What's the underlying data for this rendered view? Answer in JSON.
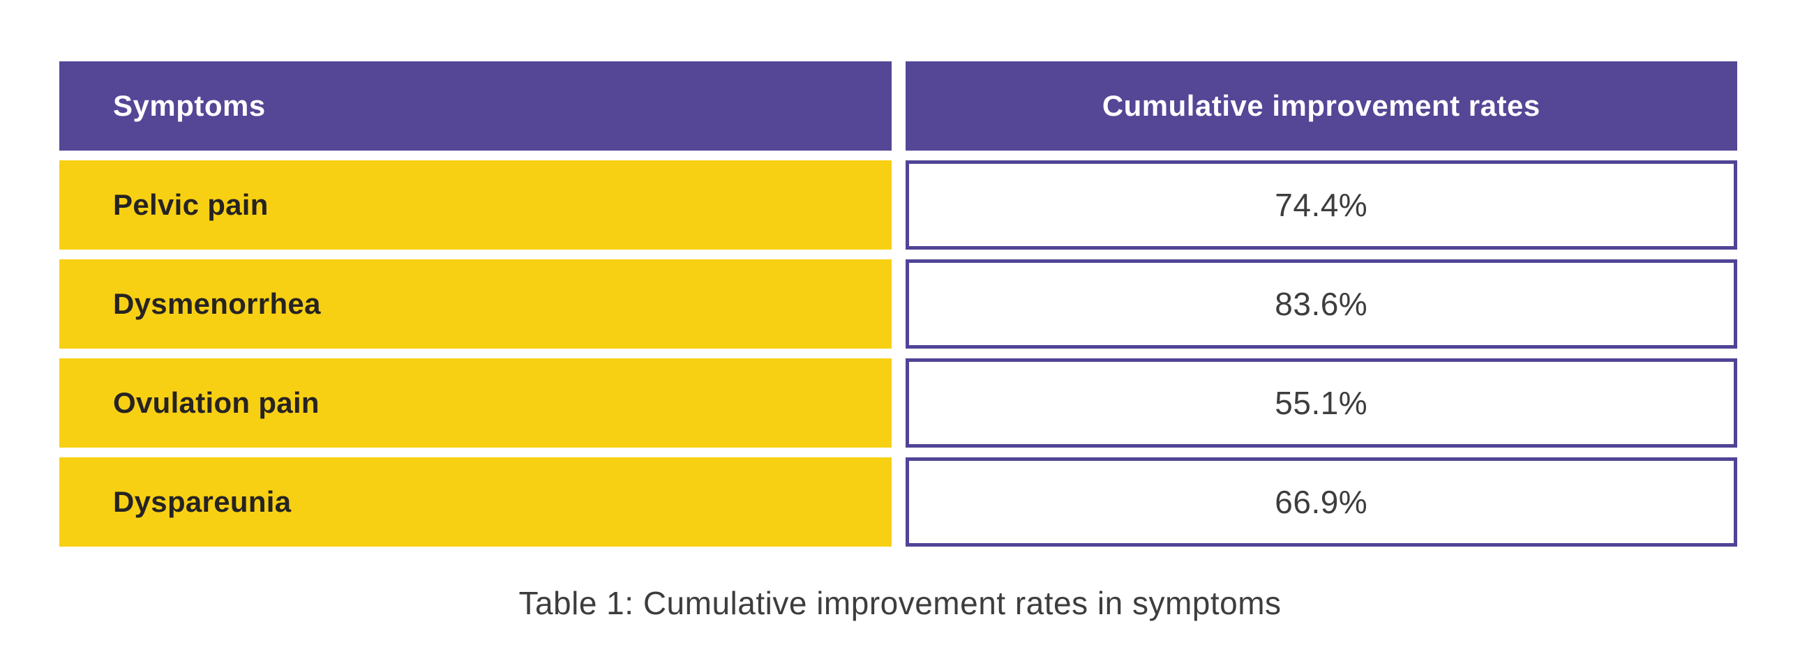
{
  "table": {
    "headers": {
      "symptoms": "Symptoms",
      "rates": "Cumulative improvement rates"
    },
    "rows": [
      {
        "symptom": "Pelvic pain",
        "rate": "74.4%"
      },
      {
        "symptom": "Dysmenorrhea",
        "rate": "83.6%"
      },
      {
        "symptom": "Ovulation pain",
        "rate": "55.1%"
      },
      {
        "symptom": "Dyspareunia",
        "rate": "66.9%"
      }
    ]
  },
  "caption": "Table 1: Cumulative improvement rates in symptoms",
  "colors": {
    "header_bg": "#554696",
    "header_text": "#ffffff",
    "symptom_bg": "#f8d013",
    "symptom_text": "#262323",
    "value_border": "#4f4496",
    "value_text": "#3d3d3d",
    "caption_text": "#3d3d3d",
    "page_bg": "#ffffff"
  },
  "chart_data": {
    "type": "table",
    "title": "Table 1: Cumulative improvement rates in symptoms",
    "columns": [
      "Symptoms",
      "Cumulative improvement rates"
    ],
    "categories": [
      "Pelvic pain",
      "Dysmenorrhea",
      "Ovulation pain",
      "Dyspareunia"
    ],
    "values": [
      74.4,
      83.6,
      55.1,
      66.9
    ],
    "unit": "%"
  }
}
